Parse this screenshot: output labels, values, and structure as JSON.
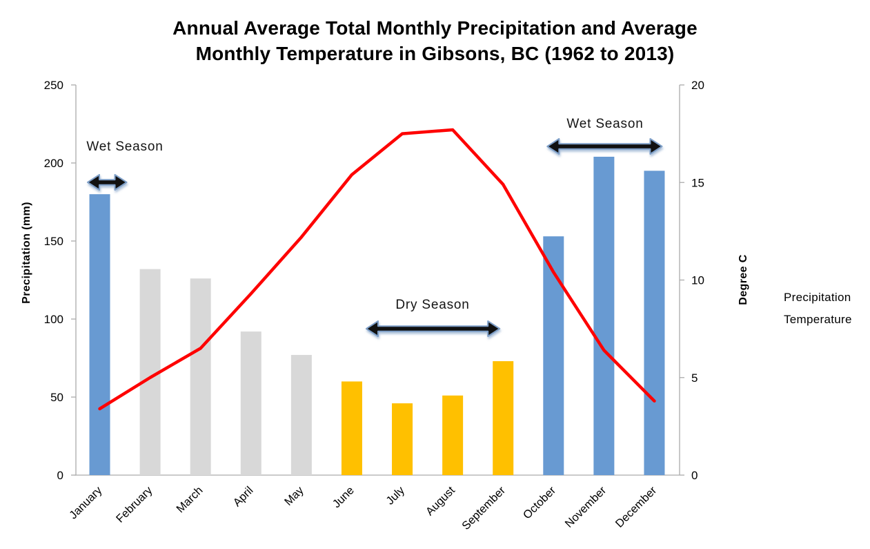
{
  "title": {
    "line1": "Annual Average Total Monthly Precipitation and Average",
    "line2": "Monthly Temperature in Gibsons, BC (1962 to 2013)"
  },
  "chart_data": {
    "type": "combo-bar-line",
    "categories": [
      "January",
      "February",
      "March",
      "April",
      "May",
      "June",
      "July",
      "August",
      "September",
      "October",
      "November",
      "December"
    ],
    "series": [
      {
        "name": "Precipitation",
        "type": "bar",
        "axis": "left",
        "values": [
          180,
          132,
          126,
          92,
          77,
          60,
          46,
          51,
          73,
          153,
          204,
          195
        ],
        "bar_color_keys": [
          "wet",
          "neutral",
          "neutral",
          "neutral",
          "neutral",
          "dry",
          "dry",
          "dry",
          "dry",
          "wet",
          "wet",
          "wet"
        ]
      },
      {
        "name": "Temperature",
        "type": "line",
        "axis": "right",
        "values": [
          3.4,
          5.0,
          6.5,
          9.3,
          12.2,
          15.4,
          17.5,
          17.7,
          14.9,
          10.4,
          6.4,
          3.8
        ]
      }
    ],
    "left_axis": {
      "label": "Precipitation (mm)",
      "range": [
        0,
        250
      ],
      "ticks": [
        0,
        50,
        100,
        150,
        200,
        250
      ]
    },
    "right_axis": {
      "label": "Degree C",
      "range": [
        0,
        20
      ],
      "ticks": [
        0,
        5,
        10,
        15,
        20
      ]
    },
    "annotations": [
      {
        "label": "Wet Season",
        "from_month": 0,
        "to_month": 0
      },
      {
        "label": "Dry Season",
        "from_month": 5,
        "to_month": 8
      },
      {
        "label": "Wet Season",
        "from_month": 9,
        "to_month": 11
      }
    ],
    "grid": "off",
    "legend_position": "right"
  },
  "legend": {
    "items": [
      {
        "label": "Precipitation",
        "swatch": "bar"
      },
      {
        "label": "Temperature",
        "swatch": "line"
      }
    ]
  },
  "colors": {
    "wet": "#689AD2",
    "neutral": "#D8D8D8",
    "dry": "#FFC000",
    "temperature_line": "#FE0000",
    "axis": "#ABABAB",
    "text": "#000000",
    "arrow_fill": "#111111",
    "arrow_outline": "#7D9EC7"
  }
}
